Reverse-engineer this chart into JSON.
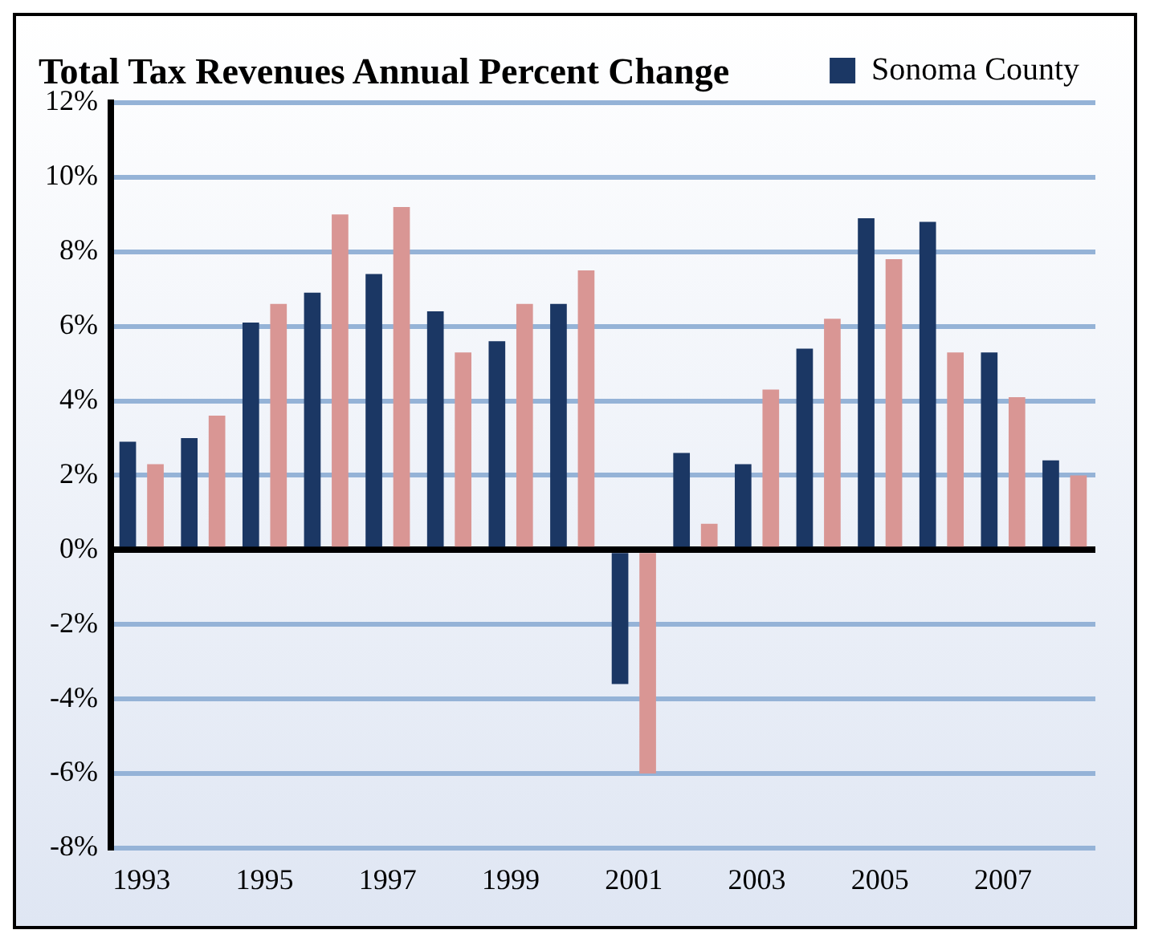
{
  "chart_data": {
    "type": "bar",
    "title": "Total Tax Revenues Annual Percent Change",
    "categories": [
      "1993",
      null,
      "1995",
      null,
      "1997",
      null,
      "1999",
      null,
      "2001",
      null,
      "2003",
      null,
      "2005",
      null,
      "2007",
      null
    ],
    "series": [
      {
        "name": "Sonoma County",
        "color": "#1b3764",
        "values": [
          2.9,
          3.0,
          6.1,
          6.9,
          7.4,
          6.4,
          5.6,
          6.6,
          -3.6,
          2.6,
          2.3,
          5.4,
          8.9,
          8.8,
          5.3,
          2.4
        ]
      },
      {
        "color": "#d99694",
        "values": [
          2.3,
          3.6,
          6.6,
          9.0,
          9.2,
          5.3,
          6.6,
          7.5,
          -6.0,
          0.7,
          4.3,
          6.2,
          7.8,
          5.3,
          4.1,
          2.0
        ]
      }
    ],
    "ylim": [
      -8,
      12
    ],
    "yticks": [
      {
        "value": -8,
        "label": "-8%"
      },
      {
        "value": -6,
        "label": "-6%"
      },
      {
        "value": -4,
        "label": "-4%"
      },
      {
        "value": -2,
        "label": "-2%"
      },
      {
        "value": 0,
        "label": "0%"
      },
      {
        "value": 2,
        "label": "2%"
      },
      {
        "value": 4,
        "label": "4%"
      },
      {
        "value": 6,
        "label": "6%"
      },
      {
        "value": 8,
        "label": "8%"
      },
      {
        "value": 10,
        "label": "10%"
      },
      {
        "value": 12,
        "label": "12%"
      }
    ],
    "grid": "y",
    "legend": "top right"
  }
}
